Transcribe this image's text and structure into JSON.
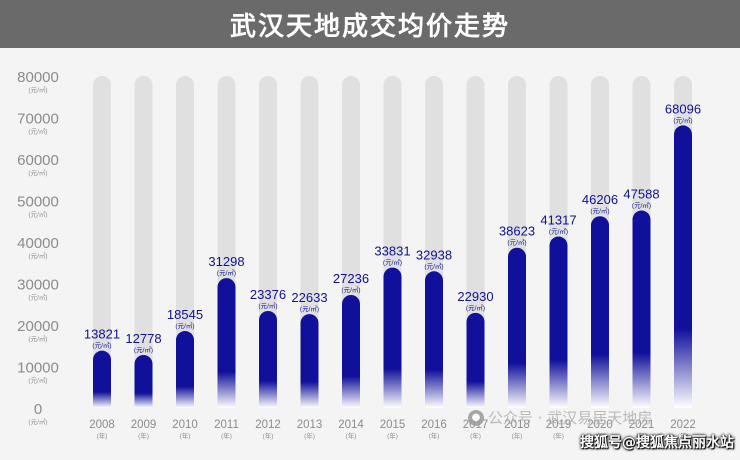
{
  "header": {
    "title": "武汉天地成交均价走势"
  },
  "chart_data": {
    "type": "bar",
    "title": "武汉天地成交均价走势",
    "categories": [
      "2008",
      "2009",
      "2010",
      "2011",
      "2012",
      "2013",
      "2014",
      "2015",
      "2016",
      "2017",
      "2018",
      "2019",
      "2020",
      "2021",
      "2022"
    ],
    "values": [
      13821,
      12778,
      18545,
      31298,
      23376,
      22633,
      27236,
      33831,
      32938,
      22930,
      38623,
      41317,
      46206,
      47588,
      68096
    ],
    "unit_label": "(元/㎡)",
    "x_unit_label": "(年)",
    "yticks": [
      0,
      10000,
      20000,
      30000,
      40000,
      50000,
      60000,
      70000,
      80000
    ],
    "ylim": [
      0,
      80000
    ],
    "grid": false,
    "colors": {
      "bar_top": "#10109a",
      "bar_bottom": "#ffffff",
      "track": "#e0e0e0",
      "value_label": "#10109a",
      "axis_text": "#8c8c8c"
    }
  },
  "watermark": {
    "text": "公众号 · 武汉易居天地房"
  },
  "credit": {
    "text": "搜狐号@搜狐焦点丽水站"
  }
}
